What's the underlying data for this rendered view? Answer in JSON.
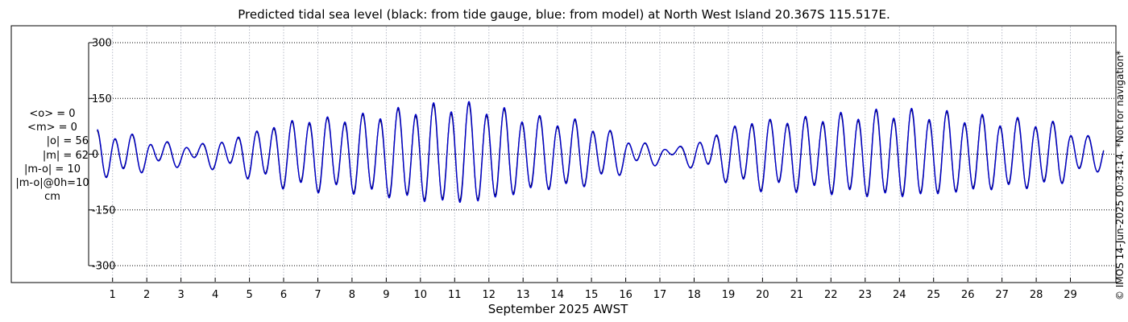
{
  "chart_data": {
    "type": "line",
    "title": "Predicted tidal sea level (black: from tide gauge, blue: from model) at North West Island 20.367S 115.517E.",
    "xlabel": "September 2025 AWST",
    "ylabel": "",
    "ylim": [
      -340,
      340
    ],
    "yticks": [
      300,
      150,
      0,
      -150,
      -300
    ],
    "ytick_labels": [
      "300",
      "150",
      "0",
      "-150",
      "-300"
    ],
    "xlim": [
      0.3,
      30
    ],
    "xticks": [
      1,
      2,
      3,
      4,
      5,
      6,
      7,
      8,
      9,
      10,
      11,
      12,
      13,
      14,
      15,
      16,
      17,
      18,
      19,
      20,
      21,
      22,
      23,
      24,
      25,
      26,
      27,
      28,
      29
    ],
    "xtick_labels": [
      "1",
      "2",
      "3",
      "4",
      "5",
      "6",
      "7",
      "8",
      "9",
      "10",
      "11",
      "12",
      "13",
      "14",
      "15",
      "16",
      "17",
      "18",
      "19",
      "20",
      "21",
      "22",
      "23",
      "24",
      "25",
      "26",
      "27",
      "28",
      "29"
    ],
    "grid": true,
    "units": "cm",
    "series": [
      {
        "name": "tide gauge",
        "color": "#000000"
      },
      {
        "name": "model",
        "color": "#0000cc"
      }
    ],
    "tide_model": {
      "start_day": 0.55,
      "end_day": 29.98,
      "m2_period_days": 0.5175,
      "k1_period_days": 0.9973,
      "semidiurnal_amplitude_peaks": [
        {
          "day": 0.55,
          "value": 55
        },
        {
          "day": 3.2,
          "value": 22
        },
        {
          "day": 7.0,
          "value": 92
        },
        {
          "day": 11.2,
          "value": 128
        },
        {
          "day": 14.0,
          "value": 88
        },
        {
          "day": 17.3,
          "value": 15
        },
        {
          "day": 20.0,
          "value": 88
        },
        {
          "day": 24.0,
          "value": 110
        },
        {
          "day": 28.0,
          "value": 85
        },
        {
          "day": 29.98,
          "value": 35
        }
      ],
      "diurnal_amplitude": 14
    }
  },
  "stats": {
    "mean_obs": "<o> = 0",
    "mean_model": "<m> = 0",
    "abs_obs": "|o| = 56",
    "abs_model": "|m| = 62",
    "abs_diff": "|m-o| = 10",
    "abs_diff_0h": "|m-o|@0h=10",
    "unit": "cm"
  },
  "credit": "© IMOS 14-Jun-2025 00:34:14. *Not for navigation*"
}
